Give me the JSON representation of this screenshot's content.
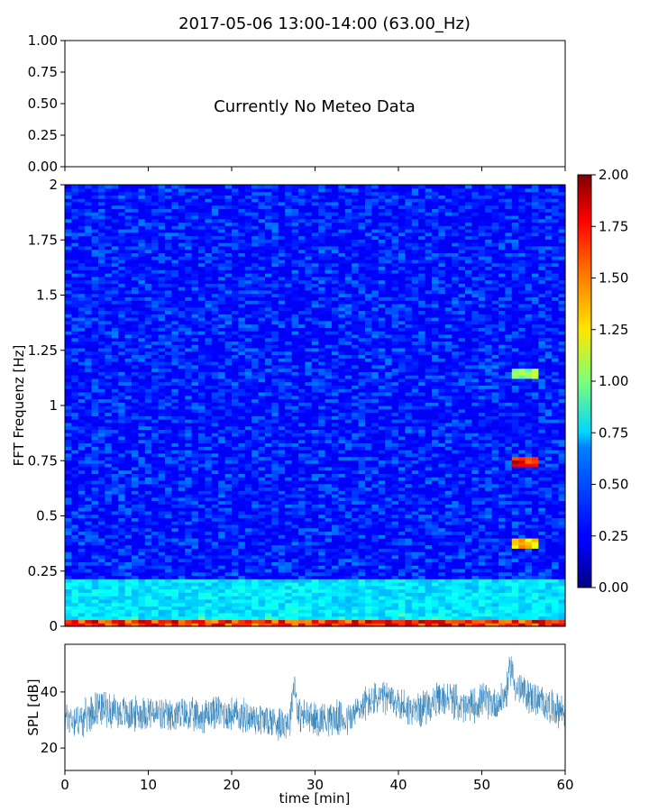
{
  "figure": {
    "title": "2017-05-06 13:00-14:00 (63.00_Hz)"
  },
  "chart_data": [
    {
      "type": "line",
      "panel": "meteo",
      "annotation": "Currently No Meteo Data",
      "series": [],
      "ylim": [
        0,
        1
      ],
      "yticks": [
        "0.00",
        "0.25",
        "0.50",
        "0.75",
        "1.00"
      ],
      "xlim": [
        0,
        60
      ],
      "xlabel": "",
      "ylabel": ""
    },
    {
      "type": "heatmap",
      "panel": "spectrogram",
      "ylabel": "FFT Frequenz [Hz]",
      "xlim": [
        0,
        60
      ],
      "ylim": [
        0,
        2
      ],
      "yticks": [
        "0",
        "0.25",
        "0.5",
        "0.75",
        "1",
        "1.25",
        "1.5",
        "1.75",
        "2"
      ],
      "colormap": "jet",
      "clim": [
        0,
        2
      ],
      "colorbar_ticks": [
        "0.00",
        "0.25",
        "0.50",
        "0.75",
        "1.00",
        "1.25",
        "1.50",
        "1.75",
        "2.00"
      ],
      "features": [
        {
          "desc": "high energy band near 0-0.02 Hz",
          "freq": [
            0,
            0.02
          ],
          "time": [
            0,
            60
          ],
          "level": 1.9
        },
        {
          "desc": "elevated band 0.02-0.2 Hz",
          "freq": [
            0.02,
            0.2
          ],
          "time": [
            0,
            60
          ],
          "level": 0.8
        },
        {
          "desc": "event",
          "freq": [
            0.72,
            0.76
          ],
          "time": [
            53.5,
            56.5
          ],
          "level": 2.0
        },
        {
          "desc": "event",
          "freq": [
            1.12,
            1.15
          ],
          "time": [
            53.5,
            56.5
          ],
          "level": 1.2
        },
        {
          "desc": "event",
          "freq": [
            0.35,
            0.38
          ],
          "time": [
            53.5,
            56.5
          ],
          "level": 1.5
        }
      ]
    },
    {
      "type": "line",
      "panel": "spl",
      "ylabel": "SPL [dB]",
      "xlabel": "time [min]",
      "xlim": [
        0,
        60
      ],
      "ylim": [
        12,
        57
      ],
      "yticks": [
        "20",
        "40"
      ],
      "xticks": [
        "0",
        "10",
        "20",
        "30",
        "40",
        "50",
        "60"
      ],
      "color": "#1f77b4",
      "series": [
        {
          "x": [
            0,
            2,
            4,
            6,
            8,
            10,
            12,
            14,
            16,
            18,
            20,
            22,
            24,
            26,
            27,
            27.5,
            28,
            30,
            32,
            34,
            36,
            38,
            40,
            42,
            44,
            46,
            48,
            50,
            52,
            53,
            53.5,
            54,
            56,
            58,
            60
          ],
          "values": [
            31,
            30,
            35,
            33,
            32,
            33,
            31,
            32,
            31,
            33,
            32,
            31,
            30,
            29,
            30,
            44,
            32,
            30,
            31,
            30,
            36,
            38,
            36,
            33,
            36,
            38,
            34,
            37,
            36,
            40,
            50,
            42,
            38,
            35,
            33
          ],
          "spread": 7
        }
      ]
    }
  ]
}
